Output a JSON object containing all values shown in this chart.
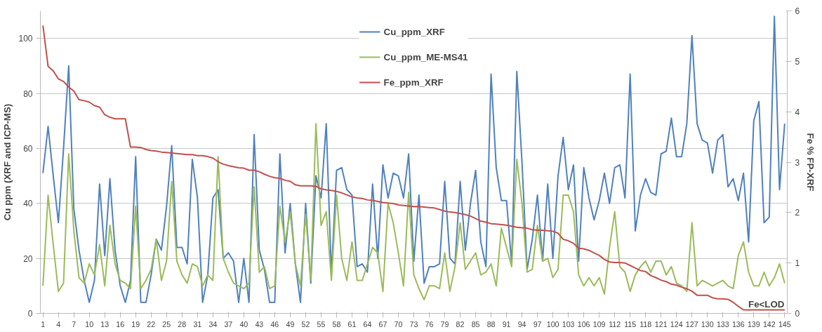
{
  "chart_data": {
    "type": "line",
    "ylabel": "Cu ppm (XRF and ICP-MS)",
    "y2label": "Fe % FP-XRF",
    "x": [
      1,
      2,
      3,
      4,
      5,
      6,
      7,
      8,
      9,
      10,
      11,
      12,
      13,
      14,
      15,
      16,
      17,
      18,
      19,
      20,
      21,
      22,
      23,
      24,
      25,
      26,
      27,
      28,
      29,
      30,
      31,
      32,
      33,
      34,
      35,
      36,
      37,
      38,
      39,
      40,
      41,
      42,
      43,
      44,
      45,
      46,
      47,
      48,
      49,
      50,
      51,
      52,
      53,
      54,
      55,
      56,
      57,
      58,
      59,
      60,
      61,
      62,
      63,
      64,
      65,
      66,
      67,
      68,
      69,
      70,
      71,
      72,
      73,
      74,
      75,
      76,
      77,
      78,
      79,
      80,
      81,
      82,
      83,
      84,
      85,
      86,
      87,
      88,
      89,
      90,
      91,
      92,
      93,
      94,
      95,
      96,
      97,
      98,
      99,
      100,
      101,
      102,
      103,
      104,
      105,
      106,
      107,
      108,
      109,
      110,
      111,
      112,
      113,
      114,
      115,
      116,
      117,
      118,
      119,
      120,
      121,
      122,
      123,
      124,
      125,
      126,
      127,
      128,
      129,
      130,
      131,
      132,
      133,
      134,
      135,
      136,
      137,
      138,
      139,
      140,
      141,
      142,
      143,
      144,
      145
    ],
    "xlim": [
      0.5,
      145.5
    ],
    "xticks": [
      1,
      4,
      7,
      10,
      13,
      16,
      19,
      22,
      25,
      28,
      31,
      34,
      37,
      40,
      43,
      46,
      49,
      52,
      55,
      58,
      61,
      64,
      67,
      70,
      73,
      76,
      79,
      82,
      85,
      88,
      91,
      94,
      97,
      100,
      103,
      106,
      109,
      112,
      115,
      118,
      121,
      124,
      127,
      130,
      133,
      136,
      139,
      142,
      145
    ],
    "ylim": [
      0,
      110
    ],
    "yticks": [
      0,
      20,
      40,
      60,
      80,
      100
    ],
    "y2lim": [
      0,
      6
    ],
    "y2ticks": [
      0,
      1,
      2,
      3,
      4,
      5,
      6
    ],
    "grid": "y",
    "legend": "top",
    "annotations": [
      "Fe<LOD"
    ],
    "series": [
      {
        "name": "Cu_ppm_XRF",
        "color": "#4f81bd",
        "values": [
          51,
          68,
          50,
          33,
          60,
          90,
          38,
          23,
          12,
          4,
          12,
          47,
          21,
          49,
          23,
          10,
          4,
          12,
          57,
          4,
          4,
          14,
          27,
          23,
          39,
          61,
          24,
          24,
          18,
          56,
          42,
          4,
          14,
          42,
          45,
          20,
          22,
          19,
          4,
          20,
          4,
          65,
          23,
          16,
          4,
          4,
          58,
          22,
          40,
          18,
          4,
          40,
          11,
          50,
          42,
          69,
          14,
          52,
          53,
          45,
          43,
          17,
          18,
          15,
          47,
          20,
          54,
          42,
          51,
          50,
          42,
          58,
          19,
          43,
          11,
          17,
          17,
          18,
          48,
          20,
          18,
          48,
          23,
          40,
          52,
          26,
          17,
          87,
          53,
          41,
          41,
          18,
          88,
          55,
          16,
          27,
          43,
          19,
          47,
          20,
          50,
          64,
          45,
          54,
          19,
          53,
          42,
          34,
          41,
          51,
          40,
          53,
          54,
          42,
          87,
          30,
          43,
          49,
          44,
          43,
          58,
          59,
          71,
          57,
          57,
          69,
          101,
          69,
          63,
          62,
          51,
          63,
          65,
          46,
          49,
          41,
          51,
          26,
          70,
          77,
          33,
          35,
          108,
          45,
          69
        ]
      },
      {
        "name": "Cu_ppm_ME-MS41",
        "color": "#9bbb59",
        "values": [
          10,
          43,
          25,
          8,
          11,
          58,
          30,
          13,
          11,
          18,
          14,
          25,
          10,
          32,
          18,
          12,
          11,
          9,
          39,
          9,
          12,
          16,
          27,
          12,
          19,
          48,
          19,
          14,
          11,
          18,
          17,
          10,
          14,
          12,
          57,
          20,
          15,
          11,
          10,
          9,
          11,
          46,
          15,
          17,
          9,
          10,
          39,
          26,
          37,
          18,
          10,
          36,
          12,
          69,
          32,
          37,
          12,
          43,
          20,
          12,
          26,
          12,
          12,
          18,
          24,
          22,
          8,
          40,
          33,
          22,
          10,
          44,
          14,
          9,
          5,
          10,
          10,
          9,
          22,
          8,
          17,
          33,
          16,
          19,
          22,
          14,
          15,
          18,
          10,
          31,
          24,
          17,
          56,
          40,
          15,
          16,
          32,
          19,
          20,
          13,
          16,
          43,
          43,
          37,
          14,
          10,
          13,
          10,
          13,
          7,
          24,
          37,
          17,
          15,
          8,
          14,
          17,
          19,
          15,
          19,
          19,
          14,
          17,
          11,
          10,
          8,
          33,
          10,
          12,
          11,
          10,
          11,
          12,
          10,
          9,
          21,
          26,
          15,
          10,
          10,
          15,
          10,
          13,
          18,
          11
        ]
      },
      {
        "name": "Fe_ppm_XRF",
        "color": "#c0504d",
        "axis": "y2",
        "values": [
          5.71,
          4.9,
          4.81,
          4.65,
          4.6,
          4.49,
          4.41,
          4.24,
          4.22,
          4.19,
          4.12,
          4.09,
          3.94,
          3.89,
          3.86,
          3.86,
          3.86,
          3.3,
          3.3,
          3.29,
          3.25,
          3.23,
          3.22,
          3.2,
          3.19,
          3.18,
          3.17,
          3.16,
          3.15,
          3.15,
          3.13,
          3.13,
          3.11,
          3.08,
          3.01,
          2.96,
          2.93,
          2.91,
          2.89,
          2.88,
          2.84,
          2.84,
          2.81,
          2.76,
          2.72,
          2.69,
          2.68,
          2.64,
          2.62,
          2.55,
          2.53,
          2.53,
          2.53,
          2.52,
          2.47,
          2.45,
          2.44,
          2.42,
          2.39,
          2.35,
          2.31,
          2.29,
          2.28,
          2.25,
          2.24,
          2.22,
          2.2,
          2.19,
          2.18,
          2.15,
          2.14,
          2.13,
          2.12,
          2.12,
          2.11,
          2.1,
          2.09,
          2.06,
          2.03,
          2.01,
          2.0,
          1.98,
          1.96,
          1.93,
          1.88,
          1.83,
          1.81,
          1.78,
          1.77,
          1.76,
          1.75,
          1.73,
          1.71,
          1.7,
          1.69,
          1.66,
          1.65,
          1.65,
          1.64,
          1.63,
          1.59,
          1.47,
          1.44,
          1.39,
          1.29,
          1.28,
          1.25,
          1.2,
          1.15,
          1.07,
          1.02,
          1.01,
          1.01,
          1.0,
          0.95,
          0.9,
          0.85,
          0.83,
          0.75,
          0.71,
          0.66,
          0.63,
          0.58,
          0.56,
          0.52,
          0.49,
          0.44,
          0.36,
          0.36,
          0.36,
          0.31,
          0.29,
          0.29,
          0.28,
          0.22,
          0.14,
          0.07,
          0.07,
          0.07,
          0.07,
          0.07,
          0.07,
          0.07,
          0.07,
          0.07
        ]
      }
    ]
  }
}
